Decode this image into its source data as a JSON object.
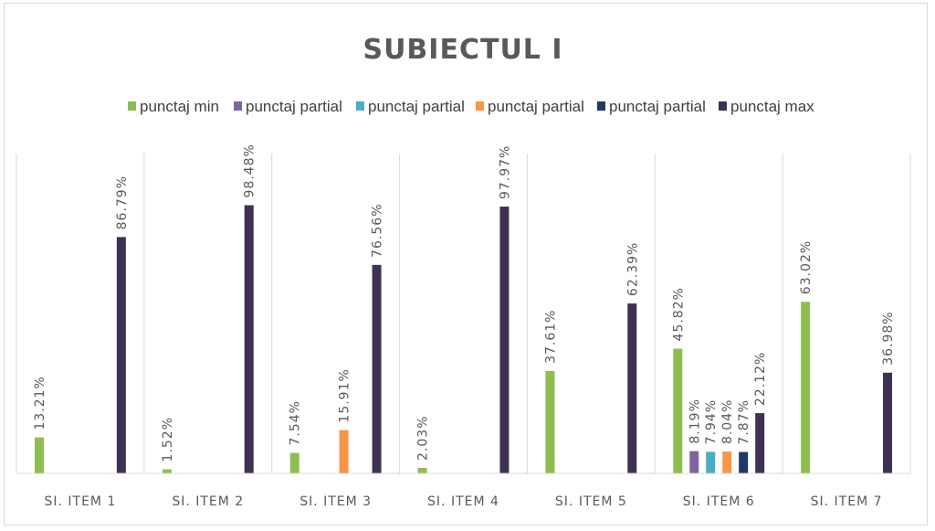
{
  "chart_data": {
    "type": "bar",
    "title": "SUBIECTUL I",
    "categories": [
      "SI. ITEM 1",
      "SI. ITEM 2",
      "SI. ITEM 3",
      "SI. ITEM 4",
      "SI. ITEM 5",
      "SI. ITEM 6",
      "SI. ITEM 7"
    ],
    "series": [
      {
        "name": "punctaj min",
        "color": "#8fbd52",
        "values": [
          13.21,
          1.52,
          7.54,
          2.03,
          37.61,
          45.82,
          63.02
        ]
      },
      {
        "name": "punctaj partial",
        "color": "#8064a2",
        "values": [
          null,
          null,
          null,
          null,
          null,
          8.19,
          null
        ]
      },
      {
        "name": "punctaj partial",
        "color": "#4bacc6",
        "values": [
          null,
          null,
          null,
          null,
          null,
          7.94,
          null
        ]
      },
      {
        "name": "punctaj partial",
        "color": "#f79646",
        "values": [
          null,
          null,
          15.91,
          null,
          null,
          8.04,
          null
        ]
      },
      {
        "name": "punctaj partial",
        "color": "#1f3864",
        "values": [
          null,
          null,
          null,
          null,
          null,
          7.87,
          null
        ]
      },
      {
        "name": "punctaj max",
        "color": "#3f3151",
        "values": [
          86.79,
          98.48,
          76.56,
          97.97,
          62.39,
          22.12,
          36.98
        ]
      }
    ],
    "value_suffix": "%",
    "ylim": [
      0,
      100
    ],
    "grid": "vertical category separators",
    "legend": "top"
  }
}
